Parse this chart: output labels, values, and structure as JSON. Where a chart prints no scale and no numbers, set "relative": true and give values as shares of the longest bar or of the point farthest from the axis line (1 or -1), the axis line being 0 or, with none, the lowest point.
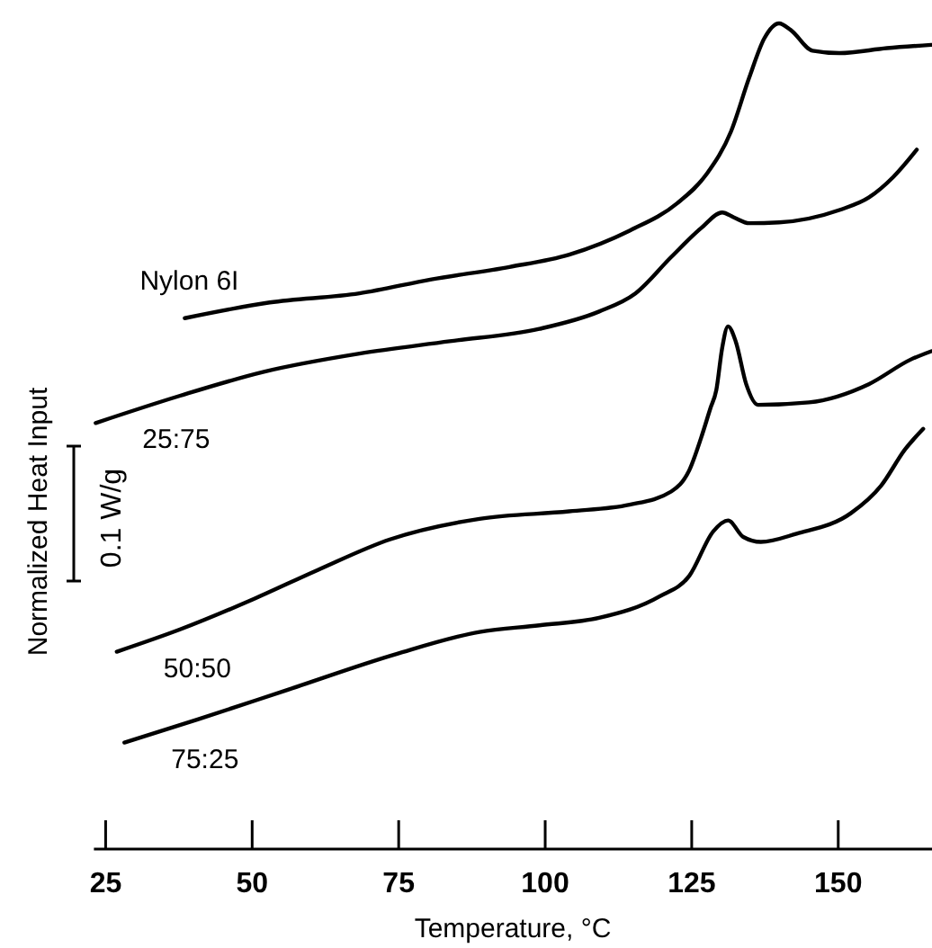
{
  "chart_data": {
    "type": "line",
    "relative": true,
    "xlabel": "Temperature, °C",
    "ylabel": "Normalized Heat Input",
    "annotations": [
      "0.1 W/g"
    ],
    "xlim": [
      23,
      166
    ],
    "xticks": [
      25,
      50,
      75,
      100,
      125,
      150
    ],
    "grid": false,
    "line_style": "solid",
    "tick_labels": "x",
    "series": [
      {
        "name": "Nylon 6I",
        "color": "#000000",
        "x": [
          38.5,
          53.0,
          68.3,
          80.6,
          93.9,
          104.1,
          114.4,
          122.5,
          127.6,
          131.7,
          134.8,
          137.4,
          139.9,
          141.9,
          145.6,
          150.2,
          158.3,
          165.9
        ],
        "values": [
          0.643,
          0.662,
          0.673,
          0.69,
          0.705,
          0.72,
          0.749,
          0.782,
          0.818,
          0.869,
          0.934,
          0.982,
          1.0,
          0.992,
          0.967,
          0.964,
          0.97,
          0.974
        ]
      },
      {
        "name": "25:75",
        "color": "#000000",
        "x": [
          23.3,
          37.7,
          52.0,
          68.3,
          83.7,
          99.0,
          109.2,
          115.4,
          121.5,
          126.6,
          130.2,
          132.2,
          134.8,
          139.9,
          150.2,
          155.2,
          159.4,
          163.4
        ],
        "values": [
          0.516,
          0.549,
          0.578,
          0.6,
          0.615,
          0.63,
          0.651,
          0.673,
          0.717,
          0.752,
          0.771,
          0.765,
          0.758,
          0.759,
          0.774,
          0.789,
          0.814,
          0.847
        ]
      },
      {
        "name": "50:50",
        "color": "#000000",
        "x": [
          26.9,
          37.7,
          50.0,
          61.2,
          73.5,
          88.8,
          104.1,
          114.4,
          121.5,
          124.6,
          126.6,
          128.2,
          129.2,
          130.2,
          131.2,
          132.5,
          134.3,
          136.3,
          145.0,
          155.2,
          162.4,
          165.9
        ],
        "values": [
          0.239,
          0.266,
          0.302,
          0.338,
          0.375,
          0.4,
          0.409,
          0.417,
          0.433,
          0.459,
          0.498,
          0.534,
          0.556,
          0.607,
          0.633,
          0.615,
          0.563,
          0.538,
          0.541,
          0.563,
          0.593,
          0.603
        ]
      },
      {
        "name": "75:25",
        "color": "#000000",
        "x": [
          28.2,
          40.7,
          56.1,
          74.5,
          88.8,
          99.0,
          109.2,
          119.5,
          124.6,
          128.7,
          131.2,
          133.8,
          136.8,
          142.9,
          152.2,
          157.3,
          161.4,
          164.5
        ],
        "values": [
          0.129,
          0.157,
          0.193,
          0.236,
          0.263,
          0.271,
          0.28,
          0.306,
          0.331,
          0.385,
          0.398,
          0.378,
          0.372,
          0.382,
          0.407,
          0.44,
          0.484,
          0.509
        ]
      }
    ]
  }
}
